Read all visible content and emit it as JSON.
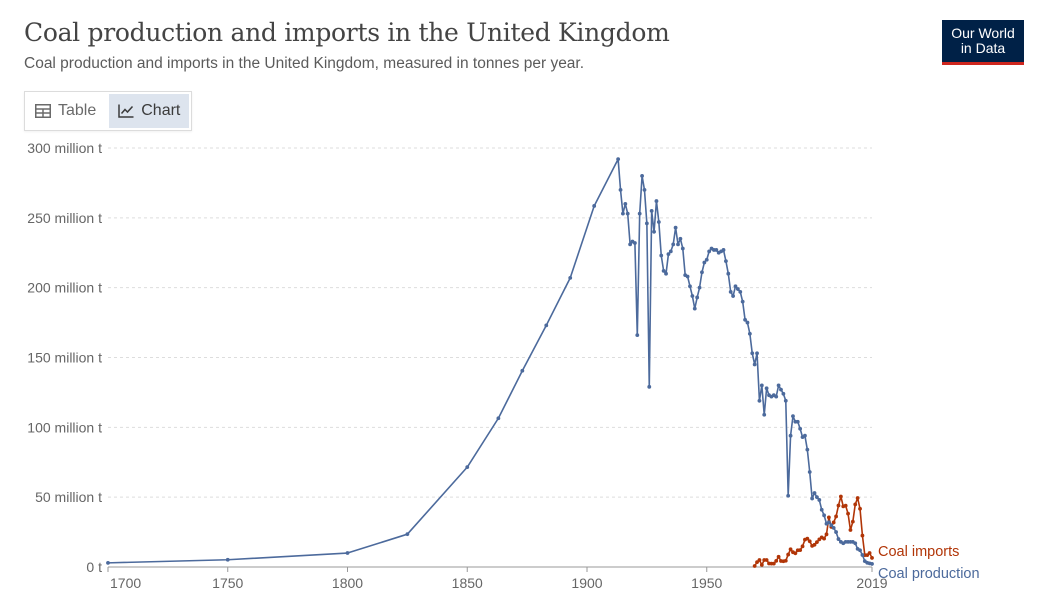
{
  "header": {
    "title": "Coal production and imports in the United Kingdom",
    "subtitle": "Coal production and imports in the United Kingdom, measured in tonnes per year.",
    "logo_line1": "Our World",
    "logo_line2": "in Data"
  },
  "tabs": [
    {
      "label": "Table",
      "icon": "table-icon",
      "active": false
    },
    {
      "label": "Chart",
      "icon": "line-chart-icon",
      "active": true
    }
  ],
  "colors": {
    "production": "#4c6a9c",
    "imports": "#b13507",
    "logo_bg": "#002147",
    "logo_accent": "#ce261e",
    "grid": "#dddddd"
  },
  "chart_data": {
    "type": "line",
    "title": "Coal production and imports in the United Kingdom",
    "subtitle": "Coal production and imports in the United Kingdom, measured in tonnes per year.",
    "xlim": [
      1700,
      2019
    ],
    "ylim": [
      0,
      300000000
    ],
    "x_ticks": [
      1700,
      1750,
      1800,
      1850,
      1900,
      1950,
      2019
    ],
    "x_tick_labels": [
      "1700",
      "1750",
      "1800",
      "1850",
      "1900",
      "1950",
      "2019"
    ],
    "y_ticks": [
      0,
      50000000,
      100000000,
      150000000,
      200000000,
      250000000,
      300000000
    ],
    "y_tick_labels": [
      "0 t",
      "50 million t",
      "100 million t",
      "150 million t",
      "200 million t",
      "250 million t",
      "300 million t"
    ],
    "grid": "horizontal dashed",
    "legend": "inline labels at line ends (right)",
    "series": [
      {
        "name": "Coal production",
        "color": "#4c6a9c",
        "points": [
          [
            1700,
            2950000
          ],
          [
            1750,
            5200000
          ],
          [
            1800,
            10000000
          ],
          [
            1825,
            23500000
          ],
          [
            1850,
            71500000
          ],
          [
            1863,
            106500000
          ],
          [
            1873,
            140500000
          ],
          [
            1883,
            173000000
          ],
          [
            1893,
            207000000
          ],
          [
            1903,
            258500000
          ],
          [
            1913,
            292000000
          ],
          [
            1914,
            270000000
          ],
          [
            1915,
            253000000
          ],
          [
            1916,
            260000000
          ],
          [
            1917,
            253000000
          ],
          [
            1918,
            231000000
          ],
          [
            1919,
            233000000
          ],
          [
            1920,
            232000000
          ],
          [
            1921,
            166000000
          ],
          [
            1922,
            253000000
          ],
          [
            1923,
            280000000
          ],
          [
            1924,
            270000000
          ],
          [
            1925,
            246000000
          ],
          [
            1926,
            129000000
          ],
          [
            1927,
            255000000
          ],
          [
            1928,
            240000000
          ],
          [
            1929,
            262000000
          ],
          [
            1930,
            247000000
          ],
          [
            1931,
            223000000
          ],
          [
            1932,
            212000000
          ],
          [
            1933,
            210000000
          ],
          [
            1934,
            224000000
          ],
          [
            1935,
            226000000
          ],
          [
            1936,
            231000000
          ],
          [
            1937,
            243000000
          ],
          [
            1938,
            231000000
          ],
          [
            1939,
            235000000
          ],
          [
            1940,
            228000000
          ],
          [
            1941,
            209000000
          ],
          [
            1942,
            208000000
          ],
          [
            1943,
            201000000
          ],
          [
            1944,
            194000000
          ],
          [
            1945,
            185000000
          ],
          [
            1946,
            193000000
          ],
          [
            1947,
            200000000
          ],
          [
            1948,
            211000000
          ],
          [
            1949,
            218000000
          ],
          [
            1950,
            220000000
          ],
          [
            1951,
            226000000
          ],
          [
            1952,
            228000000
          ],
          [
            1953,
            227000000
          ],
          [
            1954,
            227000000
          ],
          [
            1955,
            225000000
          ],
          [
            1956,
            226000000
          ],
          [
            1957,
            227000000
          ],
          [
            1958,
            219000000
          ],
          [
            1959,
            210000000
          ],
          [
            1960,
            197000000
          ],
          [
            1961,
            194000000
          ],
          [
            1962,
            201000000
          ],
          [
            1963,
            199000000
          ],
          [
            1964,
            197000000
          ],
          [
            1965,
            190000000
          ],
          [
            1966,
            177000000
          ],
          [
            1967,
            175000000
          ],
          [
            1968,
            167000000
          ],
          [
            1969,
            153000000
          ],
          [
            1970,
            145000000
          ],
          [
            1971,
            153000000
          ],
          [
            1972,
            119000000
          ],
          [
            1973,
            130000000
          ],
          [
            1974,
            109000000
          ],
          [
            1975,
            128000000
          ],
          [
            1976,
            123000000
          ],
          [
            1977,
            122000000
          ],
          [
            1978,
            123000000
          ],
          [
            1979,
            122000000
          ],
          [
            1980,
            130000000
          ],
          [
            1981,
            127000000
          ],
          [
            1982,
            124000000
          ],
          [
            1983,
            119000000
          ],
          [
            1984,
            51000000
          ],
          [
            1985,
            94000000
          ],
          [
            1986,
            108000000
          ],
          [
            1987,
            104000000
          ],
          [
            1988,
            104000000
          ],
          [
            1989,
            99000000
          ],
          [
            1990,
            93000000
          ],
          [
            1991,
            94000000
          ],
          [
            1992,
            84000000
          ],
          [
            1993,
            68000000
          ],
          [
            1994,
            49000000
          ],
          [
            1995,
            53000000
          ],
          [
            1996,
            50000000
          ],
          [
            1997,
            48000000
          ],
          [
            1998,
            41000000
          ],
          [
            1999,
            37000000
          ],
          [
            2000,
            31000000
          ],
          [
            2001,
            32000000
          ],
          [
            2002,
            30000000
          ],
          [
            2003,
            28000000
          ],
          [
            2004,
            25000000
          ],
          [
            2005,
            20000000
          ],
          [
            2006,
            18000000
          ],
          [
            2007,
            17000000
          ],
          [
            2008,
            18000000
          ],
          [
            2009,
            18000000
          ],
          [
            2010,
            18000000
          ],
          [
            2011,
            18000000
          ],
          [
            2012,
            17000000
          ],
          [
            2013,
            13000000
          ],
          [
            2014,
            12000000
          ],
          [
            2015,
            8600000
          ],
          [
            2016,
            4200000
          ],
          [
            2017,
            3000000
          ],
          [
            2018,
            2600000
          ],
          [
            2019,
            2200000
          ]
        ]
      },
      {
        "name": "Coal imports",
        "color": "#b13507",
        "points": [
          [
            1970,
            700000
          ],
          [
            1971,
            3500000
          ],
          [
            1972,
            5000000
          ],
          [
            1973,
            1500000
          ],
          [
            1974,
            5000000
          ],
          [
            1975,
            5000000
          ],
          [
            1976,
            2500000
          ],
          [
            1977,
            2400000
          ],
          [
            1978,
            2400000
          ],
          [
            1979,
            4400000
          ],
          [
            1980,
            7300000
          ],
          [
            1981,
            4300000
          ],
          [
            1982,
            4100000
          ],
          [
            1983,
            4500000
          ],
          [
            1984,
            8900000
          ],
          [
            1985,
            12700000
          ],
          [
            1986,
            10600000
          ],
          [
            1987,
            9800000
          ],
          [
            1988,
            12000000
          ],
          [
            1989,
            12100000
          ],
          [
            1990,
            14800000
          ],
          [
            1991,
            19600000
          ],
          [
            1992,
            20300000
          ],
          [
            1993,
            18400000
          ],
          [
            1994,
            15100000
          ],
          [
            1995,
            15900000
          ],
          [
            1996,
            17800000
          ],
          [
            1997,
            19800000
          ],
          [
            1998,
            21200000
          ],
          [
            1999,
            20300000
          ],
          [
            2000,
            23400000
          ],
          [
            2001,
            35500000
          ],
          [
            2002,
            28700000
          ],
          [
            2003,
            31900000
          ],
          [
            2004,
            36200000
          ],
          [
            2005,
            44000000
          ],
          [
            2006,
            50500000
          ],
          [
            2007,
            43400000
          ],
          [
            2008,
            43900000
          ],
          [
            2009,
            38200000
          ],
          [
            2010,
            26500000
          ],
          [
            2011,
            32500000
          ],
          [
            2012,
            44800000
          ],
          [
            2013,
            49400000
          ],
          [
            2014,
            41700000
          ],
          [
            2015,
            22500000
          ],
          [
            2016,
            8500000
          ],
          [
            2017,
            8500000
          ],
          [
            2018,
            10000000
          ],
          [
            2019,
            6500000
          ]
        ]
      }
    ]
  }
}
